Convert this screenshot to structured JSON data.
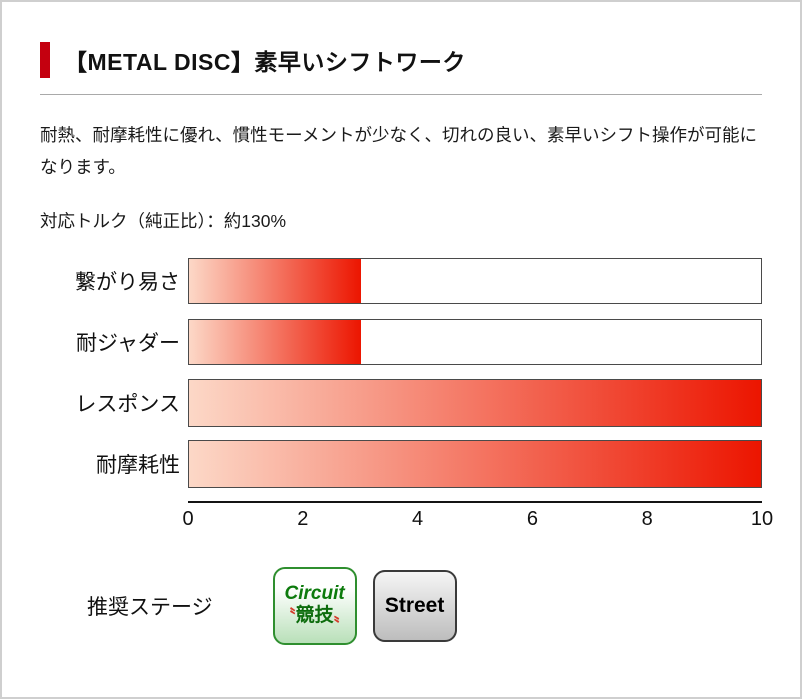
{
  "header": {
    "title": "【METAL DISC】素早いシフトワーク"
  },
  "intro": {
    "text": "耐熱、耐摩耗性に優れ、慣性モーメントが少なく、切れの良い、素早いシフト操作が可能になります。"
  },
  "torque": {
    "text": "対応トルク（純正比）：約130%"
  },
  "chart_data": {
    "type": "bar",
    "orientation": "horizontal",
    "title": "",
    "categories": [
      "繋がり易さ",
      "耐ジャダー",
      "レスポンス",
      "耐摩耗性"
    ],
    "values": [
      3,
      3,
      10,
      10
    ],
    "xlim": [
      0,
      10
    ],
    "xticks": [
      0,
      2,
      4,
      6,
      8,
      10
    ],
    "grid": false,
    "bar_gradient_start": "#fcd8c7",
    "bar_gradient_end": "#ec1500",
    "track_border_color": "#4a4a4a"
  },
  "recommend": {
    "label": "推奨ステージ",
    "circuit_badge": {
      "line1": "Circuit",
      "quote_left": "〝",
      "line2": "競技",
      "quote_right": "〟"
    },
    "street_badge": {
      "label": "Street"
    }
  },
  "colors": {
    "accent_red": "#c4000f",
    "badge_green": "#2f8f2f",
    "badge_gray": "#3a3a3a"
  }
}
